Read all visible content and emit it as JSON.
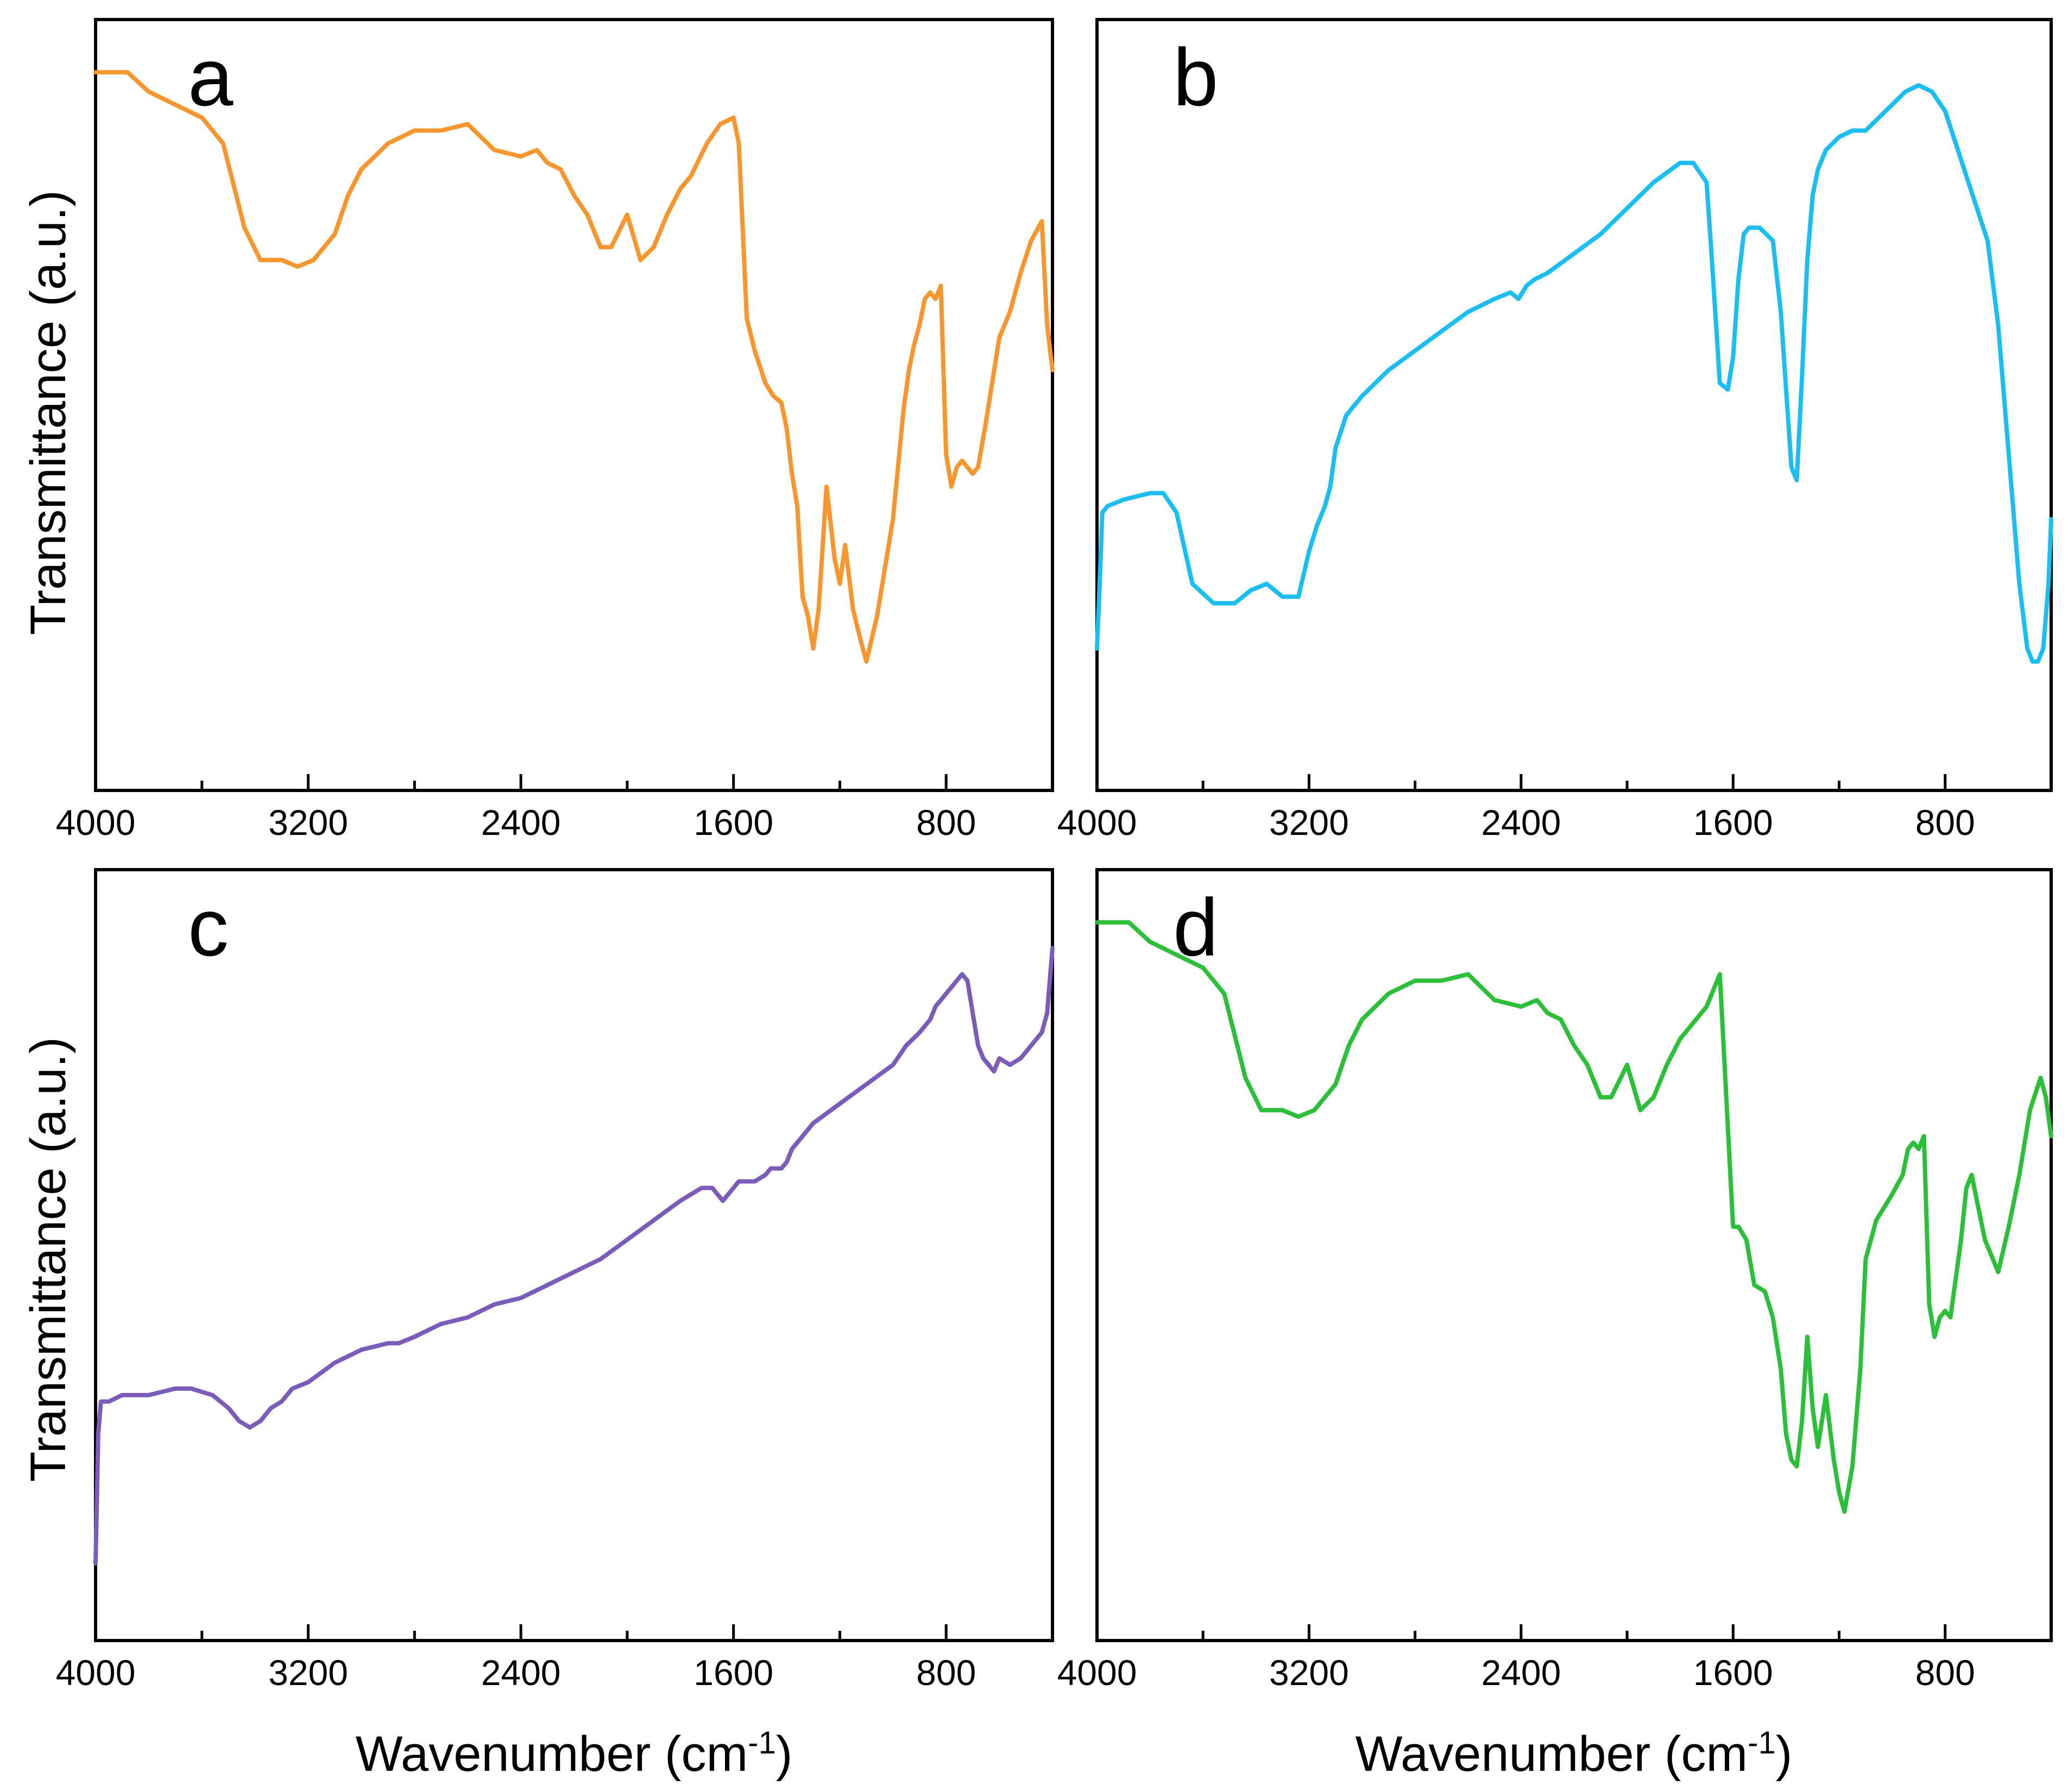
{
  "figure": {
    "x_axis_label": "Wavenumber (cm",
    "x_axis_label_sup": "-1",
    "x_axis_label_close": ")",
    "y_axis_label": "Transmittance (a.u.)"
  },
  "chart_data": [
    {
      "type": "line",
      "panel": "a",
      "color": "#F7962F",
      "xlabel": "Wavenumber (cm-1)",
      "ylabel": "Transmittance (a.u.)",
      "xlim": [
        4000,
        400
      ],
      "ylim": [
        0,
        100
      ],
      "xticks": [
        4000,
        3200,
        2400,
        1600,
        800
      ],
      "x": [
        4000,
        3880,
        3800,
        3700,
        3600,
        3520,
        3440,
        3380,
        3300,
        3240,
        3180,
        3100,
        3050,
        3000,
        2950,
        2900,
        2850,
        2800,
        2760,
        2700,
        2600,
        2500,
        2400,
        2340,
        2300,
        2250,
        2200,
        2150,
        2100,
        2060,
        2000,
        1950,
        1900,
        1850,
        1800,
        1760,
        1700,
        1650,
        1600,
        1580,
        1550,
        1520,
        1480,
        1450,
        1420,
        1400,
        1380,
        1360,
        1340,
        1320,
        1300,
        1280,
        1250,
        1220,
        1200,
        1180,
        1150,
        1120,
        1100,
        1060,
        1000,
        960,
        940,
        920,
        900,
        880,
        860,
        840,
        820,
        800,
        780,
        760,
        740,
        720,
        700,
        680,
        650,
        600,
        560,
        520,
        480,
        440,
        420,
        400
      ],
      "y": [
        99,
        99,
        96,
        94,
        92,
        88,
        75,
        70,
        70,
        69,
        70,
        74,
        80,
        84,
        86,
        88,
        89,
        90,
        90,
        90,
        91,
        87,
        86,
        87,
        85,
        84,
        80,
        77,
        72,
        72,
        77,
        70,
        72,
        77,
        81,
        83,
        88,
        91,
        92,
        88,
        61,
        56,
        51,
        49,
        48,
        44,
        37,
        32,
        18,
        15,
        10,
        16,
        35,
        24,
        20,
        26,
        16,
        11,
        8,
        15,
        30,
        47,
        53,
        57,
        60,
        64,
        65,
        64,
        66,
        40,
        35,
        38,
        39,
        38,
        37,
        38,
        45,
        58,
        62,
        68,
        73,
        76,
        60,
        53
      ]
    },
    {
      "type": "line",
      "panel": "b",
      "color": "#1CBDF0",
      "xlabel": "Wavenumber (cm-1)",
      "ylabel": "Transmittance (a.u.)",
      "xlim": [
        4000,
        400
      ],
      "ylim": [
        0,
        100
      ],
      "xticks": [
        4000,
        3200,
        2400,
        1600,
        800
      ],
      "x": [
        4000,
        3990,
        3980,
        3960,
        3900,
        3800,
        3750,
        3700,
        3640,
        3560,
        3480,
        3420,
        3360,
        3300,
        3240,
        3200,
        3170,
        3140,
        3120,
        3100,
        3060,
        3000,
        2900,
        2800,
        2700,
        2600,
        2500,
        2440,
        2410,
        2380,
        2350,
        2300,
        2200,
        2100,
        2000,
        1900,
        1800,
        1750,
        1700,
        1680,
        1650,
        1620,
        1600,
        1580,
        1560,
        1540,
        1500,
        1450,
        1420,
        1400,
        1380,
        1360,
        1340,
        1320,
        1300,
        1280,
        1250,
        1200,
        1150,
        1100,
        1050,
        1000,
        950,
        900,
        850,
        800,
        760,
        720,
        680,
        640,
        600,
        560,
        520,
        490,
        470,
        450,
        430,
        410,
        400
      ],
      "y": [
        10,
        20,
        31,
        32,
        33,
        34,
        34,
        31,
        20,
        17,
        17,
        19,
        20,
        18,
        18,
        25,
        29,
        32,
        35,
        41,
        46,
        49,
        53,
        56,
        59,
        62,
        64,
        65,
        64,
        66,
        67,
        68,
        71,
        74,
        78,
        82,
        85,
        85,
        82,
        70,
        51,
        50,
        55,
        67,
        74,
        75,
        75,
        73,
        62,
        50,
        38,
        36,
        52,
        70,
        80,
        84,
        87,
        89,
        90,
        90,
        92,
        94,
        96,
        97,
        96,
        93,
        88,
        83,
        78,
        73,
        60,
        40,
        20,
        10,
        8,
        8,
        10,
        20,
        30
      ],
      "ylim_note": "relative"
    },
    {
      "type": "line",
      "panel": "c",
      "color": "#7B5CB8",
      "xlabel": "Wavenumber (cm-1)",
      "ylabel": "Transmittance (a.u.)",
      "xlim": [
        4000,
        400
      ],
      "ylim": [
        0,
        100
      ],
      "xticks": [
        4000,
        3200,
        2400,
        1600,
        800
      ],
      "x": [
        4000,
        3990,
        3980,
        3950,
        3900,
        3800,
        3700,
        3640,
        3560,
        3500,
        3460,
        3420,
        3380,
        3340,
        3300,
        3260,
        3200,
        3100,
        3000,
        2900,
        2860,
        2800,
        2700,
        2600,
        2500,
        2400,
        2300,
        2200,
        2100,
        2000,
        1900,
        1800,
        1720,
        1680,
        1660,
        1640,
        1620,
        1600,
        1580,
        1560,
        1520,
        1480,
        1460,
        1420,
        1400,
        1380,
        1300,
        1200,
        1100,
        1000,
        950,
        900,
        860,
        840,
        820,
        800,
        780,
        760,
        740,
        720,
        700,
        680,
        660,
        640,
        620,
        600,
        560,
        520,
        480,
        440,
        420,
        410,
        400
      ],
      "y": [
        0,
        20,
        25,
        25,
        26,
        26,
        27,
        27,
        26,
        24,
        22,
        21,
        22,
        24,
        25,
        27,
        28,
        31,
        33,
        34,
        34,
        35,
        37,
        38,
        40,
        41,
        43,
        45,
        47,
        50,
        53,
        56,
        58,
        58,
        57,
        56,
        57,
        58,
        59,
        59,
        59,
        60,
        61,
        61,
        62,
        64,
        68,
        71,
        74,
        77,
        80,
        82,
        84,
        86,
        87,
        88,
        89,
        90,
        91,
        90,
        85,
        80,
        78,
        77,
        76,
        78,
        77,
        78,
        80,
        82,
        85,
        90,
        95
      ]
    },
    {
      "type": "line",
      "panel": "d",
      "color": "#2EBF3A",
      "xlabel": "Wavenumber (cm-1)",
      "ylabel": "Transmittance (a.u.)",
      "xlim": [
        4000,
        400
      ],
      "ylim": [
        0,
        100
      ],
      "xticks": [
        4000,
        3200,
        2400,
        1600,
        800
      ],
      "x": [
        4000,
        3880,
        3800,
        3700,
        3600,
        3520,
        3440,
        3380,
        3300,
        3240,
        3180,
        3100,
        3050,
        3000,
        2950,
        2900,
        2850,
        2800,
        2760,
        2700,
        2600,
        2500,
        2400,
        2340,
        2300,
        2250,
        2200,
        2150,
        2100,
        2060,
        2000,
        1950,
        1900,
        1850,
        1800,
        1760,
        1740,
        1720,
        1700,
        1680,
        1650,
        1600,
        1580,
        1550,
        1520,
        1480,
        1450,
        1420,
        1400,
        1380,
        1360,
        1340,
        1320,
        1300,
        1280,
        1250,
        1220,
        1200,
        1180,
        1150,
        1120,
        1100,
        1060,
        1000,
        960,
        940,
        920,
        900,
        880,
        860,
        840,
        820,
        800,
        780,
        760,
        740,
        720,
        700,
        680,
        650,
        600,
        560,
        520,
        480,
        440,
        420,
        400
      ],
      "y": [
        99,
        99,
        96,
        94,
        92,
        88,
        75,
        70,
        70,
        69,
        70,
        74,
        80,
        84,
        86,
        88,
        89,
        90,
        90,
        90,
        91,
        87,
        86,
        87,
        85,
        84,
        80,
        77,
        72,
        72,
        77,
        70,
        72,
        77,
        81,
        83,
        84,
        85,
        86,
        88,
        91,
        52,
        52,
        50,
        43,
        42,
        38,
        30,
        20,
        16,
        15,
        22,
        35,
        24,
        18,
        26,
        16,
        11,
        8,
        15,
        30,
        47,
        53,
        57,
        60,
        64,
        65,
        64,
        66,
        40,
        35,
        38,
        39,
        38,
        44,
        50,
        58,
        60,
        56,
        50,
        45,
        52,
        60,
        70,
        75,
        72,
        66
      ]
    }
  ]
}
